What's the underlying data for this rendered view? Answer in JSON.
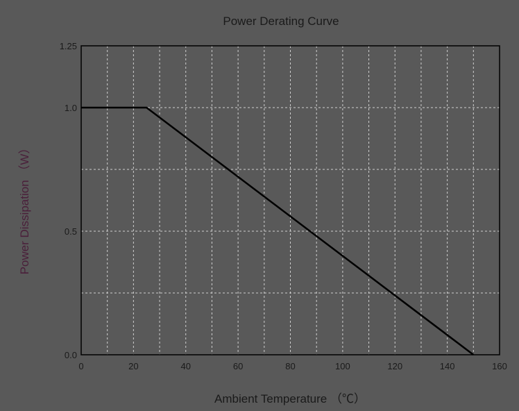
{
  "chart_data": {
    "type": "line",
    "title": "Power Derating Curve",
    "xlabel": "Ambient Temperature  （℃）",
    "ylabel": "Power Dissipation （W）",
    "xlim": [
      0,
      160
    ],
    "ylim": [
      0,
      1.25
    ],
    "x_ticks": [
      0,
      20,
      40,
      60,
      80,
      100,
      120,
      140,
      160
    ],
    "x_tick_labels": [
      "0",
      "20",
      "40",
      "60",
      "80",
      "100",
      "120",
      "140",
      "160"
    ],
    "y_ticks": [
      0,
      0.5,
      1.0,
      1.25
    ],
    "y_tick_labels": [
      "0.0",
      "0.5",
      "1.0",
      "1.25"
    ],
    "x_grid": [
      0,
      10,
      20,
      30,
      40,
      50,
      60,
      70,
      80,
      90,
      100,
      110,
      120,
      130,
      140,
      150,
      160
    ],
    "y_grid": [
      0.25,
      0.5,
      0.75,
      1.0
    ],
    "grid": true,
    "series": [
      {
        "x": [
          0,
          25,
          150
        ],
        "y": [
          1.0,
          1.0,
          0.0
        ]
      }
    ],
    "colors": {
      "background": "#595959",
      "line": "#000000",
      "grid": "#cfcfcf",
      "axis": "#000000"
    }
  }
}
